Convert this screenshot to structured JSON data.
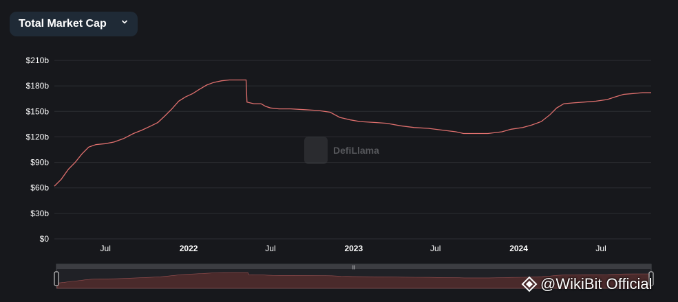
{
  "selector": {
    "label": "Total Market Cap"
  },
  "watermark": {
    "text": "DefiLlama"
  },
  "overlay": {
    "text": "@WikiBit Official"
  },
  "colors": {
    "line": "#e0706e",
    "grid": "#2d2e33",
    "tick": "#ffffff",
    "selector_bg": "#1f2a36",
    "brush_fill": "#4a2a2b"
  },
  "chart_data": {
    "type": "line",
    "title": "Total Market Cap",
    "xlabel": "",
    "ylabel": "",
    "ylim": [
      0,
      210
    ],
    "y_ticks": [
      0,
      30,
      60,
      90,
      120,
      150,
      180,
      210
    ],
    "y_tick_labels": [
      "$0",
      "$30b",
      "$60b",
      "$90b",
      "$120b",
      "$150b",
      "$180b",
      "$210b"
    ],
    "x_range": [
      "2021-03-10",
      "2024-10-20"
    ],
    "x_ticks": [
      {
        "date": "2021-07-01",
        "label": "Jul",
        "bold": false
      },
      {
        "date": "2022-01-01",
        "label": "2022",
        "bold": true
      },
      {
        "date": "2022-07-01",
        "label": "Jul",
        "bold": false
      },
      {
        "date": "2023-01-01",
        "label": "2023",
        "bold": true
      },
      {
        "date": "2023-07-01",
        "label": "Jul",
        "bold": false
      },
      {
        "date": "2024-01-01",
        "label": "2024",
        "bold": true
      },
      {
        "date": "2024-07-01",
        "label": "Jul",
        "bold": false
      }
    ],
    "grid": true,
    "series": [
      {
        "values_unit": "billion USD",
        "points": [
          [
            "2021-03-10",
            62
          ],
          [
            "2021-03-25",
            70
          ],
          [
            "2021-04-10",
            82
          ],
          [
            "2021-04-25",
            90
          ],
          [
            "2021-05-10",
            100
          ],
          [
            "2021-05-25",
            108
          ],
          [
            "2021-06-10",
            111
          ],
          [
            "2021-07-01",
            112
          ],
          [
            "2021-07-20",
            114
          ],
          [
            "2021-08-10",
            118
          ],
          [
            "2021-09-01",
            124
          ],
          [
            "2021-09-20",
            128
          ],
          [
            "2021-10-10",
            133
          ],
          [
            "2021-10-25",
            137
          ],
          [
            "2021-11-10",
            145
          ],
          [
            "2021-11-25",
            153
          ],
          [
            "2021-12-10",
            162
          ],
          [
            "2021-12-25",
            167
          ],
          [
            "2022-01-10",
            171
          ],
          [
            "2022-01-25",
            176
          ],
          [
            "2022-02-10",
            181
          ],
          [
            "2022-02-25",
            184
          ],
          [
            "2022-03-15",
            186
          ],
          [
            "2022-04-01",
            187
          ],
          [
            "2022-04-20",
            187
          ],
          [
            "2022-05-08",
            187
          ],
          [
            "2022-05-10",
            161
          ],
          [
            "2022-05-25",
            159
          ],
          [
            "2022-06-10",
            159
          ],
          [
            "2022-06-20",
            156
          ],
          [
            "2022-07-01",
            154
          ],
          [
            "2022-07-20",
            153
          ],
          [
            "2022-08-15",
            153
          ],
          [
            "2022-09-15",
            152
          ],
          [
            "2022-10-15",
            151
          ],
          [
            "2022-11-10",
            149
          ],
          [
            "2022-12-01",
            143
          ],
          [
            "2022-12-25",
            140
          ],
          [
            "2023-01-15",
            138
          ],
          [
            "2023-02-15",
            137
          ],
          [
            "2023-03-15",
            136
          ],
          [
            "2023-04-15",
            133
          ],
          [
            "2023-05-15",
            131
          ],
          [
            "2023-06-15",
            130
          ],
          [
            "2023-07-15",
            128
          ],
          [
            "2023-08-15",
            126
          ],
          [
            "2023-09-01",
            124
          ],
          [
            "2023-09-25",
            124
          ],
          [
            "2023-10-25",
            124
          ],
          [
            "2023-11-25",
            126
          ],
          [
            "2023-12-15",
            129
          ],
          [
            "2024-01-10",
            131
          ],
          [
            "2024-01-30",
            134
          ],
          [
            "2024-02-20",
            138
          ],
          [
            "2024-03-10",
            146
          ],
          [
            "2024-03-25",
            154
          ],
          [
            "2024-04-10",
            159
          ],
          [
            "2024-05-01",
            160
          ],
          [
            "2024-05-25",
            161
          ],
          [
            "2024-06-20",
            162
          ],
          [
            "2024-07-15",
            164
          ],
          [
            "2024-08-01",
            167
          ],
          [
            "2024-08-20",
            170
          ],
          [
            "2024-09-10",
            171
          ],
          [
            "2024-10-01",
            172
          ],
          [
            "2024-10-20",
            172
          ]
        ]
      }
    ]
  }
}
